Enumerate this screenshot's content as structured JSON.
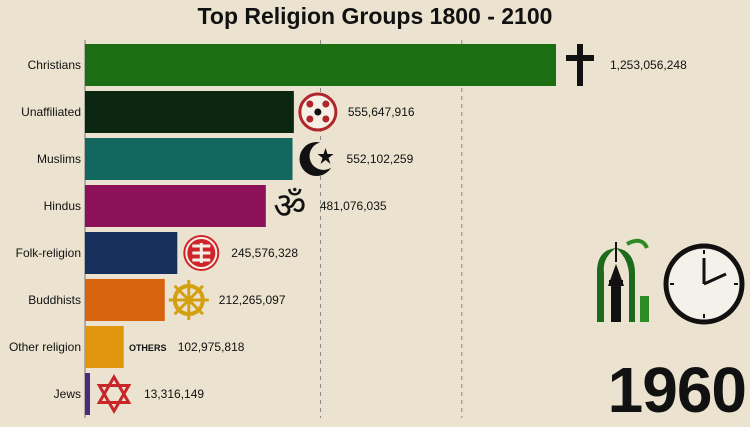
{
  "chart_data": {
    "type": "bar",
    "orientation": "horizontal",
    "title": "Top Religion Groups 1800 - 2100",
    "xlabel": "",
    "ylabel": "",
    "categories": [
      "Christians",
      "Unaffiliated",
      "Muslims",
      "Hindus",
      "Folk-religion",
      "Buddhists",
      "Other religion",
      "Jews"
    ],
    "values": [
      1253056248,
      555647916,
      552102259,
      481076035,
      245576328,
      212265097,
      102975818,
      13316149
    ],
    "value_labels": [
      "1,253,056,248",
      "555,647,916",
      "552,102,259",
      "481,076,035",
      "245,576,328",
      "212,265,097",
      "102,975,818",
      "13,316,149"
    ],
    "colors": [
      "#1b6e12",
      "#0a2610",
      "#12675f",
      "#8c1159",
      "#15305a",
      "#d86410",
      "#e0960e",
      "#4a2a7a"
    ],
    "icons": [
      "latin-cross-icon",
      "unaffiliated-symbols-icon",
      "crescent-star-icon",
      "om-icon",
      "folk-religion-icon",
      "dharma-wheel-icon",
      "others-text",
      "star-of-david-icon"
    ],
    "others_icon_text": "OTHERS",
    "xlim": [
      0,
      1253056248
    ],
    "grid": true,
    "legend": "none",
    "year": "1960"
  },
  "logo": {
    "name": "mosque-tower-clock-logo"
  }
}
